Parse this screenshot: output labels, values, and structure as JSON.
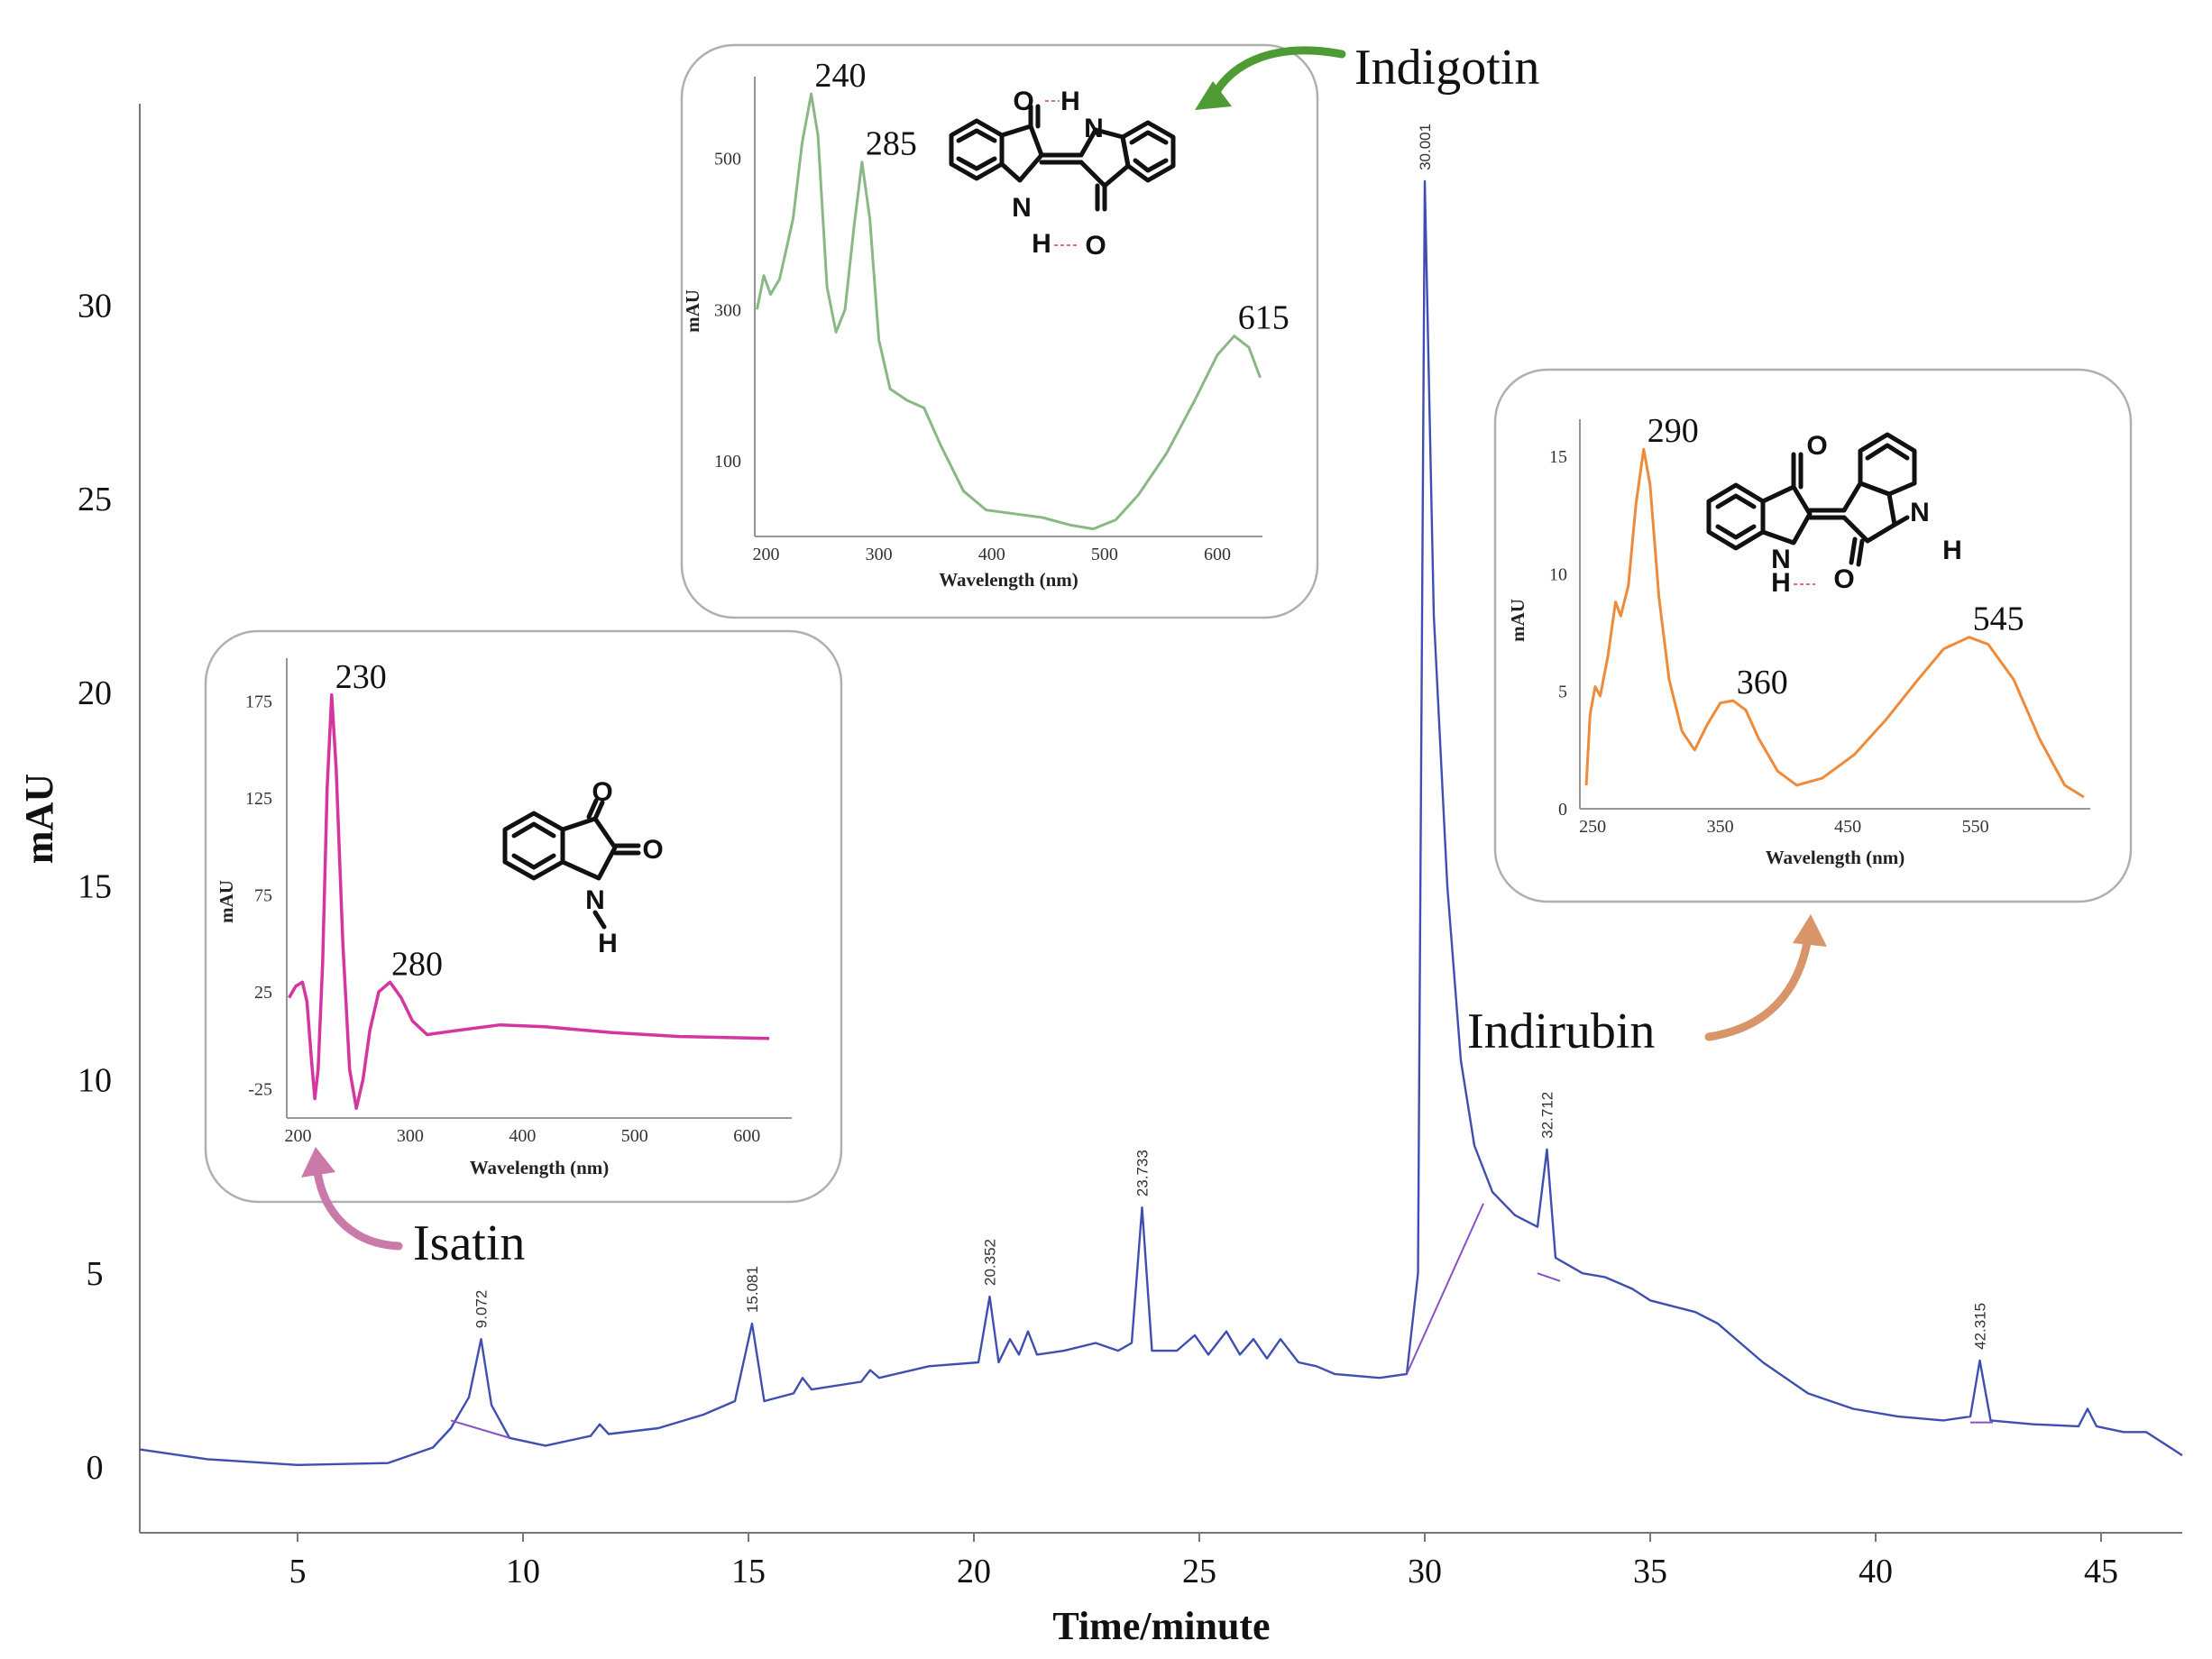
{
  "chart_data": {
    "type": "line",
    "xlabel": "Time/minute",
    "ylabel": "mAU",
    "xlim": [
      1.5,
      46.8
    ],
    "ylim": [
      -1.7,
      35.2
    ],
    "x_ticks": [
      5,
      10,
      15,
      20,
      25,
      30,
      35,
      40,
      45
    ],
    "y_ticks": [
      0,
      5,
      10,
      15,
      20,
      25,
      30
    ],
    "series": [
      {
        "color": "#3f4fb0",
        "points": [
          [
            1.5,
            0.45
          ],
          [
            3,
            0.2
          ],
          [
            5,
            0.05
          ],
          [
            7,
            0.1
          ],
          [
            8,
            0.5
          ],
          [
            8.4,
            1.0
          ],
          [
            8.8,
            1.8
          ],
          [
            9.07,
            3.3
          ],
          [
            9.3,
            1.6
          ],
          [
            9.7,
            0.75
          ],
          [
            10.5,
            0.55
          ],
          [
            11.5,
            0.8
          ],
          [
            11.7,
            1.1
          ],
          [
            11.9,
            0.85
          ],
          [
            13,
            1.0
          ],
          [
            14,
            1.35
          ],
          [
            14.7,
            1.7
          ],
          [
            15.08,
            3.7
          ],
          [
            15.35,
            1.7
          ],
          [
            16,
            1.9
          ],
          [
            16.2,
            2.3
          ],
          [
            16.4,
            2.0
          ],
          [
            17.5,
            2.2
          ],
          [
            17.7,
            2.5
          ],
          [
            17.9,
            2.3
          ],
          [
            19,
            2.6
          ],
          [
            20.1,
            2.7
          ],
          [
            20.35,
            4.4
          ],
          [
            20.55,
            2.7
          ],
          [
            20.8,
            3.3
          ],
          [
            21,
            2.9
          ],
          [
            21.2,
            3.5
          ],
          [
            21.4,
            2.9
          ],
          [
            22,
            3.0
          ],
          [
            22.7,
            3.2
          ],
          [
            23.2,
            3.0
          ],
          [
            23.5,
            3.2
          ],
          [
            23.73,
            6.7
          ],
          [
            23.95,
            3.0
          ],
          [
            24.5,
            3.0
          ],
          [
            24.9,
            3.4
          ],
          [
            25.2,
            2.9
          ],
          [
            25.6,
            3.5
          ],
          [
            25.9,
            2.9
          ],
          [
            26.2,
            3.3
          ],
          [
            26.5,
            2.8
          ],
          [
            26.8,
            3.3
          ],
          [
            27.2,
            2.7
          ],
          [
            27.6,
            2.6
          ],
          [
            28,
            2.4
          ],
          [
            29,
            2.3
          ],
          [
            29.6,
            2.4
          ],
          [
            29.85,
            5.0
          ],
          [
            30.0,
            33.2
          ],
          [
            30.2,
            22.0
          ],
          [
            30.5,
            15.0
          ],
          [
            30.8,
            10.5
          ],
          [
            31.1,
            8.3
          ],
          [
            31.5,
            7.1
          ],
          [
            32,
            6.5
          ],
          [
            32.5,
            6.2
          ],
          [
            32.71,
            8.2
          ],
          [
            32.9,
            5.4
          ],
          [
            33.5,
            5.0
          ],
          [
            34,
            4.9
          ],
          [
            34.6,
            4.6
          ],
          [
            35,
            4.3
          ],
          [
            36,
            4.0
          ],
          [
            36.5,
            3.7
          ],
          [
            37.5,
            2.7
          ],
          [
            38.5,
            1.9
          ],
          [
            39.5,
            1.5
          ],
          [
            40.5,
            1.3
          ],
          [
            41.5,
            1.2
          ],
          [
            42.1,
            1.3
          ],
          [
            42.31,
            2.75
          ],
          [
            42.55,
            1.2
          ],
          [
            43.5,
            1.1
          ],
          [
            44.5,
            1.05
          ],
          [
            44.7,
            1.5
          ],
          [
            44.9,
            1.05
          ],
          [
            45.5,
            0.9
          ],
          [
            46,
            0.9
          ],
          [
            46.8,
            0.3
          ]
        ]
      }
    ],
    "baselines": {
      "color": "#8a4fc8",
      "segments": [
        [
          [
            8.4,
            1.2
          ],
          [
            9.7,
            0.75
          ]
        ],
        [
          [
            29.6,
            2.4
          ],
          [
            31.3,
            6.8
          ]
        ],
        [
          [
            32.5,
            5.0
          ],
          [
            33.0,
            4.8
          ]
        ],
        [
          [
            42.1,
            1.15
          ],
          [
            42.6,
            1.15
          ]
        ]
      ]
    },
    "peak_labels": [
      {
        "x": 9.072,
        "y": 3.3,
        "label": "9.072"
      },
      {
        "x": 15.081,
        "y": 3.7,
        "label": "15.081"
      },
      {
        "x": 20.352,
        "y": 4.4,
        "label": "20.352"
      },
      {
        "x": 23.733,
        "y": 6.7,
        "label": "23.733"
      },
      {
        "x": 30.001,
        "y": 33.2,
        "label": "30.001"
      },
      {
        "x": 32.712,
        "y": 8.2,
        "label": "32.712"
      },
      {
        "x": 42.315,
        "y": 2.75,
        "label": "42.315"
      }
    ],
    "insets": [
      {
        "compound": "Isatin",
        "color": "#d4359e",
        "arrow_color": "#c97aa8",
        "xlabel": "Wavelength (nm)",
        "ylabel": "mAU",
        "xlim": [
          190,
          640
        ],
        "ylim": [
          -40,
          190
        ],
        "x_ticks": [
          200,
          300,
          400,
          500,
          600
        ],
        "y_ticks": [
          -25,
          25,
          75,
          125,
          175
        ],
        "peaks": [
          {
            "x": 230,
            "y": 178,
            "label": "230"
          },
          {
            "x": 280,
            "y": 30,
            "label": "280"
          }
        ],
        "points": [
          [
            192,
            22
          ],
          [
            198,
            28
          ],
          [
            204,
            30
          ],
          [
            208,
            20
          ],
          [
            212,
            -10
          ],
          [
            215,
            -30
          ],
          [
            218,
            -15
          ],
          [
            222,
            40
          ],
          [
            226,
            130
          ],
          [
            230,
            178
          ],
          [
            234,
            140
          ],
          [
            240,
            50
          ],
          [
            246,
            -15
          ],
          [
            252,
            -35
          ],
          [
            258,
            -20
          ],
          [
            264,
            5
          ],
          [
            272,
            25
          ],
          [
            282,
            30
          ],
          [
            292,
            22
          ],
          [
            302,
            10
          ],
          [
            315,
            3
          ],
          [
            340,
            5
          ],
          [
            380,
            8
          ],
          [
            420,
            7
          ],
          [
            480,
            4
          ],
          [
            540,
            2
          ],
          [
            620,
            1
          ]
        ]
      },
      {
        "compound": "Indigotin",
        "color": "#8ab885",
        "arrow_color": "#4e9a34",
        "xlabel": "Wavelength (nm)",
        "ylabel": "mAU",
        "xlim": [
          190,
          640
        ],
        "ylim": [
          0,
          590
        ],
        "x_ticks": [
          200,
          300,
          400,
          500,
          600
        ],
        "y_ticks": [
          100,
          300,
          500
        ],
        "peaks": [
          {
            "x": 240,
            "y": 585,
            "label": "240"
          },
          {
            "x": 285,
            "y": 495,
            "label": "285"
          },
          {
            "x": 615,
            "y": 265,
            "label": "615"
          }
        ],
        "points": [
          [
            192,
            300
          ],
          [
            198,
            345
          ],
          [
            204,
            320
          ],
          [
            212,
            340
          ],
          [
            224,
            420
          ],
          [
            232,
            520
          ],
          [
            240,
            585
          ],
          [
            246,
            530
          ],
          [
            254,
            330
          ],
          [
            262,
            270
          ],
          [
            270,
            300
          ],
          [
            278,
            410
          ],
          [
            285,
            495
          ],
          [
            292,
            420
          ],
          [
            300,
            260
          ],
          [
            310,
            195
          ],
          [
            325,
            180
          ],
          [
            340,
            170
          ],
          [
            355,
            120
          ],
          [
            375,
            60
          ],
          [
            395,
            35
          ],
          [
            420,
            30
          ],
          [
            445,
            25
          ],
          [
            470,
            15
          ],
          [
            490,
            10
          ],
          [
            510,
            22
          ],
          [
            530,
            55
          ],
          [
            555,
            110
          ],
          [
            580,
            180
          ],
          [
            600,
            240
          ],
          [
            615,
            265
          ],
          [
            628,
            250
          ],
          [
            638,
            210
          ]
        ]
      },
      {
        "compound": "Indirubin",
        "color": "#ee8a3a",
        "arrow_color": "#d8956a",
        "xlabel": "Wavelength (nm)",
        "ylabel": "mAU",
        "xlim": [
          240,
          640
        ],
        "ylim": [
          0,
          16
        ],
        "x_ticks": [
          250,
          350,
          450,
          550
        ],
        "y_ticks": [
          0,
          5,
          10,
          15
        ],
        "peaks": [
          {
            "x": 290,
            "y": 15.3,
            "label": "290"
          },
          {
            "x": 360,
            "y": 4.6,
            "label": "360"
          },
          {
            "x": 545,
            "y": 7.3,
            "label": "545"
          }
        ],
        "points": [
          [
            245,
            1
          ],
          [
            248,
            4
          ],
          [
            252,
            5.2
          ],
          [
            256,
            4.8
          ],
          [
            262,
            6.5
          ],
          [
            268,
            8.8
          ],
          [
            272,
            8.2
          ],
          [
            278,
            9.5
          ],
          [
            284,
            13
          ],
          [
            290,
            15.3
          ],
          [
            295,
            13.8
          ],
          [
            302,
            9
          ],
          [
            310,
            5.5
          ],
          [
            320,
            3.3
          ],
          [
            330,
            2.5
          ],
          [
            340,
            3.6
          ],
          [
            350,
            4.5
          ],
          [
            360,
            4.6
          ],
          [
            370,
            4.2
          ],
          [
            380,
            3
          ],
          [
            395,
            1.6
          ],
          [
            410,
            1
          ],
          [
            430,
            1.3
          ],
          [
            455,
            2.3
          ],
          [
            480,
            3.8
          ],
          [
            505,
            5.5
          ],
          [
            525,
            6.8
          ],
          [
            545,
            7.3
          ],
          [
            560,
            7
          ],
          [
            580,
            5.5
          ],
          [
            600,
            3
          ],
          [
            620,
            1
          ],
          [
            635,
            0.5
          ]
        ]
      }
    ]
  }
}
